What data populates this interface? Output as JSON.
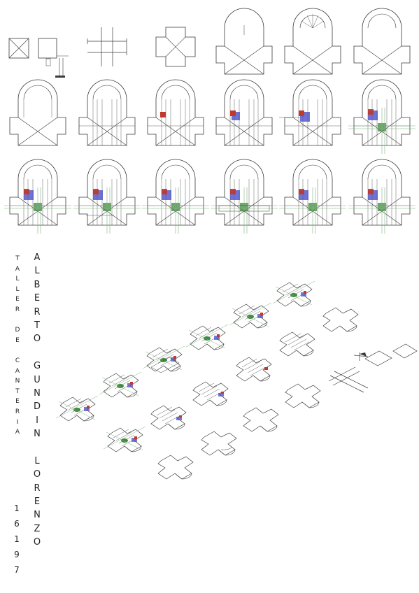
{
  "sheet": {
    "studio_label": [
      "T",
      "A",
      "L",
      "L",
      "E",
      "R",
      "",
      "D",
      "E",
      "",
      "C",
      "A",
      "N",
      "T",
      "E",
      "R",
      "I",
      "A"
    ],
    "author_name": [
      "A",
      "L",
      "B",
      "E",
      "R",
      "T",
      "O",
      "",
      "G",
      "U",
      "N",
      "D",
      "I",
      "N",
      "",
      "L",
      "O",
      "R",
      "E",
      "N",
      "Z",
      "O"
    ],
    "year": [
      "1",
      "6",
      "1",
      "9",
      "7"
    ]
  },
  "colors": {
    "line": "#3a3a3a",
    "red_block": "#c0392b",
    "blue_block": "#4a4fc7",
    "green_block": "#3e8a3e",
    "green_line": "#7fb37f"
  }
}
